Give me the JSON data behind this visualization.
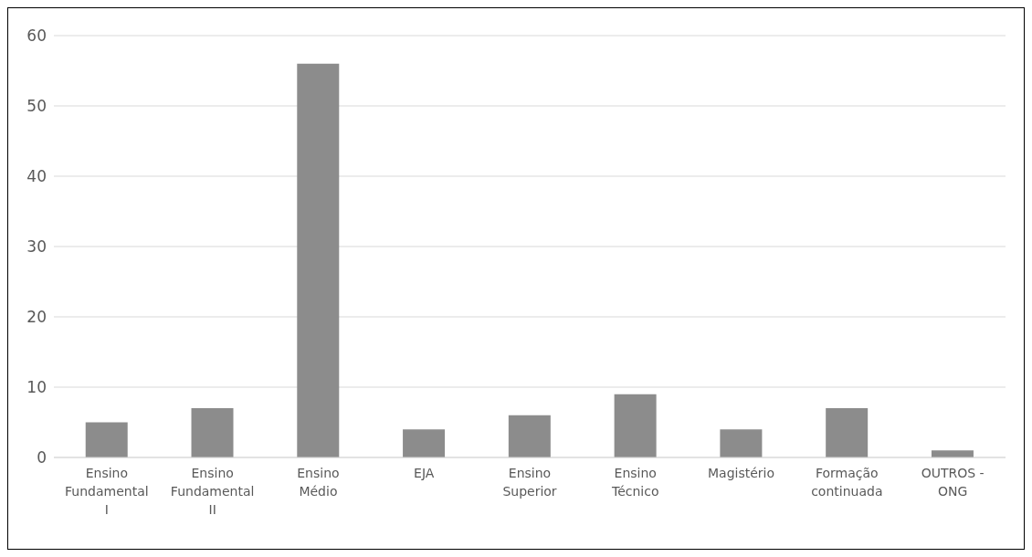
{
  "chart_data": {
    "type": "bar",
    "categories": [
      "Ensino Fundamental I",
      "Ensino Fundamental II",
      "Ensino Médio",
      "EJA",
      "Ensino Superior",
      "Ensino Técnico",
      "Magistério",
      "Formação continuada",
      "OUTROS - ONG"
    ],
    "values": [
      5,
      7,
      56,
      4,
      6,
      9,
      4,
      7,
      1
    ],
    "color": "#8c8c8c",
    "ylim": [
      0,
      60
    ],
    "yticks": [
      0,
      10,
      20,
      30,
      40,
      50,
      60
    ],
    "grid": "y"
  }
}
